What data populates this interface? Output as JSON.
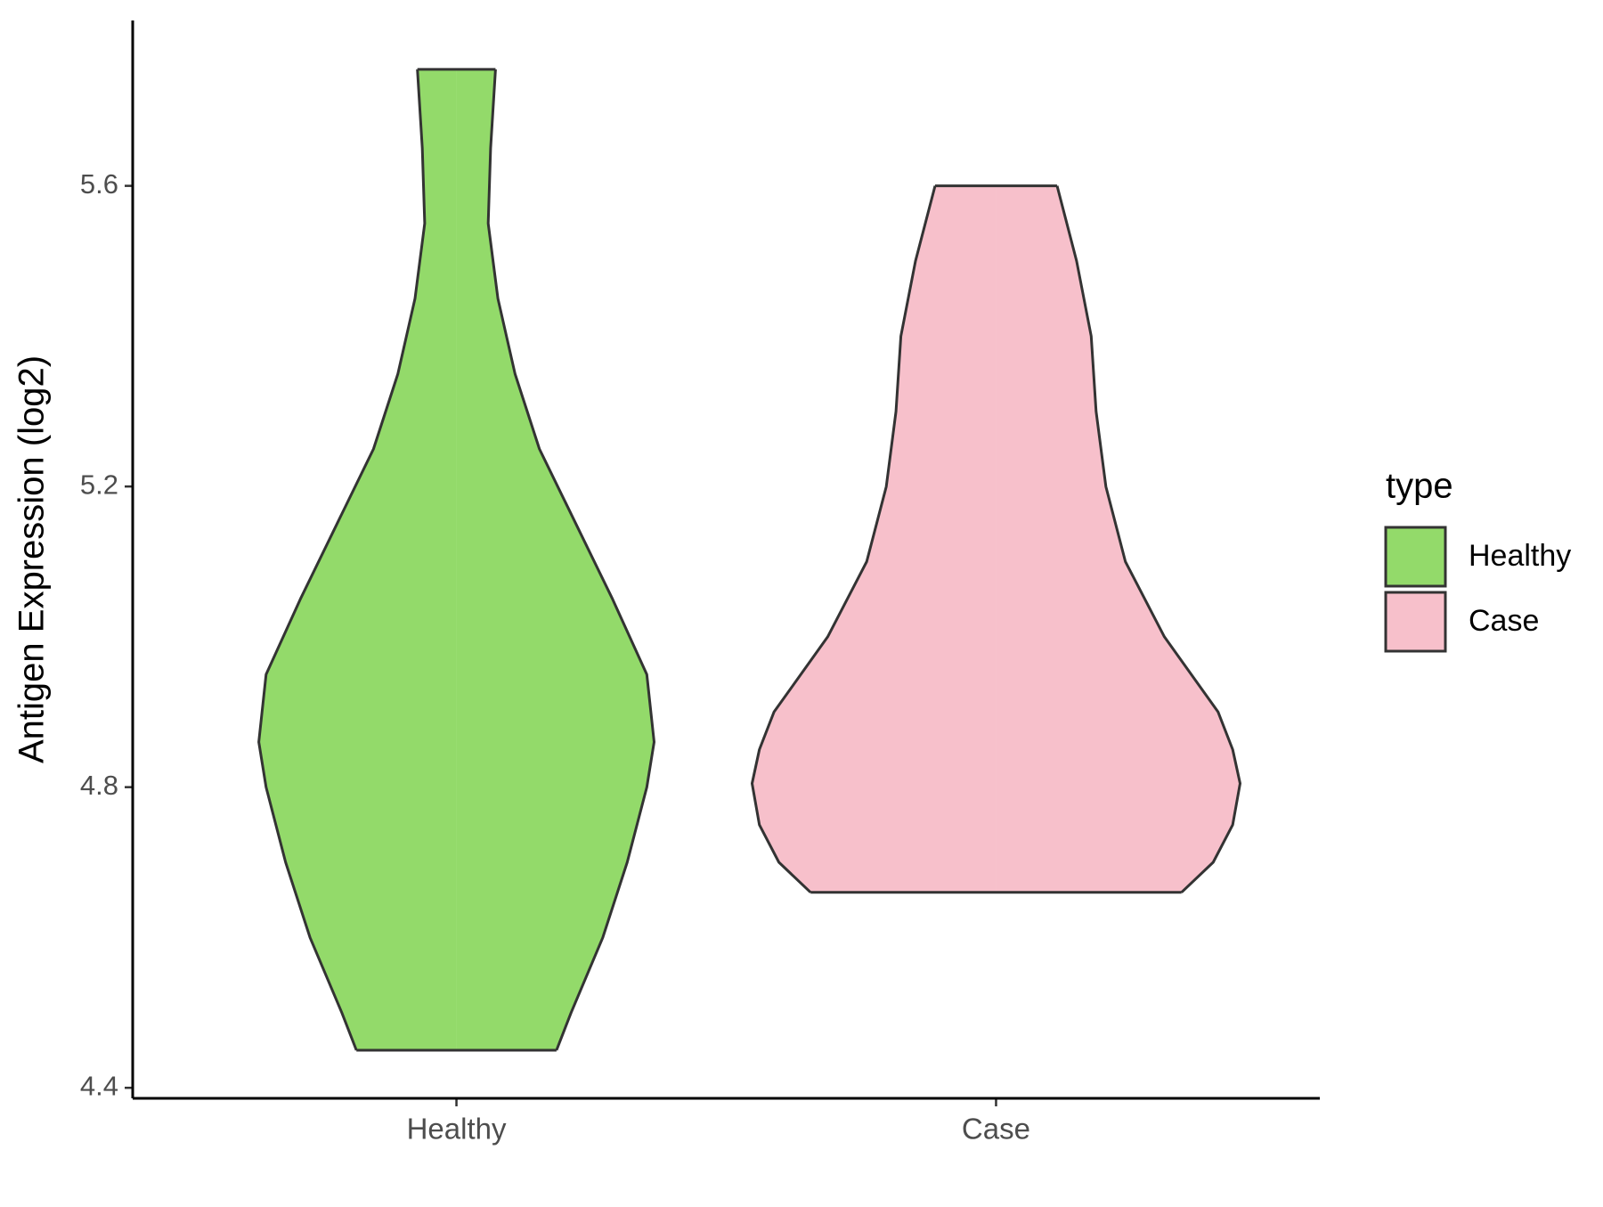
{
  "chart_data": {
    "type": "violin",
    "y_label": "Antigen Expression (log2)",
    "categories": [
      "Healthy",
      "Case"
    ],
    "legend_title": "type",
    "legend": "right",
    "series": [
      {
        "name": "Healthy",
        "color": "#93DA6A",
        "y": [
          4.45,
          4.5,
          4.6,
          4.7,
          4.8,
          4.86,
          4.95,
          5.05,
          5.15,
          5.25,
          5.35,
          5.45,
          5.55,
          5.65,
          5.755
        ],
        "density": [
          0.41,
          0.47,
          0.6,
          0.7,
          0.78,
          0.81,
          0.78,
          0.64,
          0.49,
          0.34,
          0.24,
          0.17,
          0.13,
          0.14,
          0.16
        ]
      },
      {
        "name": "Case",
        "color": "#F7C0CB",
        "y": [
          4.66,
          4.7,
          4.75,
          4.805,
          4.85,
          4.9,
          5.0,
          5.1,
          5.2,
          5.3,
          5.4,
          5.5,
          5.6
        ],
        "density": [
          0.76,
          0.89,
          0.97,
          1.0,
          0.97,
          0.91,
          0.69,
          0.53,
          0.45,
          0.41,
          0.39,
          0.33,
          0.25
        ]
      }
    ],
    "ylim": [
      4.386,
      5.82
    ],
    "yticks": [
      4.4,
      4.8,
      5.2,
      5.6
    ]
  }
}
